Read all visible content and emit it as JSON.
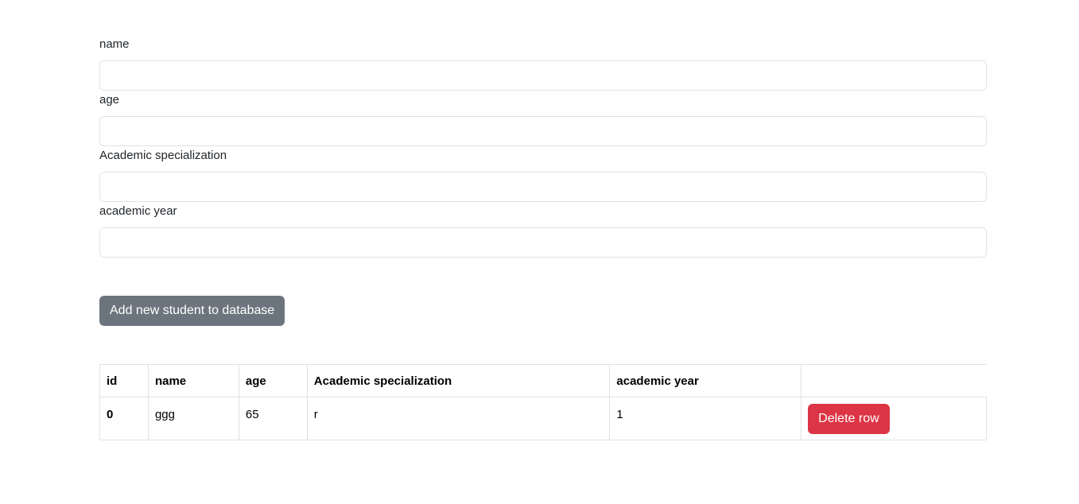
{
  "form": {
    "fields": [
      {
        "label": "name",
        "value": "",
        "placeholder": ""
      },
      {
        "label": "age",
        "value": "",
        "placeholder": ""
      },
      {
        "label": "Academic specialization",
        "value": "",
        "placeholder": ""
      },
      {
        "label": "academic year",
        "value": "",
        "placeholder": ""
      }
    ],
    "submit_label": "Add new student to database"
  },
  "table": {
    "headers": [
      "id",
      "name",
      "age",
      "Academic specialization",
      "academic year",
      ""
    ],
    "rows": [
      {
        "id": "0",
        "name": "ggg",
        "age": "65",
        "specialization": "r",
        "year": "1",
        "action_label": "Delete row"
      }
    ]
  },
  "colors": {
    "secondary_button": "#6c757d",
    "danger_button": "#dc3545",
    "border": "#dee2e6"
  }
}
